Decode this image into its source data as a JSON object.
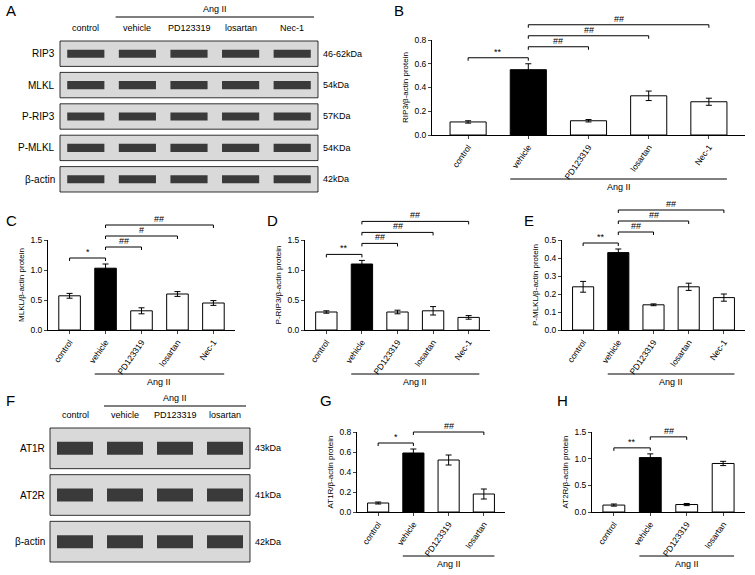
{
  "chart_data": [
    {
      "panel": "B",
      "type": "bar",
      "y_label": "RIP3/β-actin protein",
      "categories": [
        "control",
        "vehicle",
        "PD123319",
        "losartan",
        "Nec-1"
      ],
      "values": [
        0.11,
        0.55,
        0.12,
        0.33,
        0.28
      ],
      "errors": [
        0.01,
        0.05,
        0.01,
        0.04,
        0.03
      ],
      "colors": [
        "#ffffff",
        "#000000",
        "#ffffff",
        "#ffffff",
        "#ffffff"
      ],
      "ylim": [
        0,
        0.8
      ],
      "yticks": [
        {
          "value": 0,
          "label": "0.0"
        },
        0.2,
        0.4,
        0.6,
        0.8
      ],
      "significance": [
        {
          "from": "control",
          "to": "vehicle",
          "label": "**"
        },
        {
          "from": "vehicle",
          "to": "PD123319",
          "label": "##"
        },
        {
          "from": "vehicle",
          "to": "losartan",
          "label": "##"
        },
        {
          "from": "vehicle",
          "to": "Nec-1",
          "label": "##"
        }
      ],
      "group": {
        "label": "Ang II",
        "categories": [
          "vehicle",
          "PD123319",
          "losartan",
          "Nec-1"
        ]
      }
    },
    {
      "panel": "C",
      "type": "bar",
      "y_label": "MLKL/β-actin protein",
      "categories": [
        "control",
        "vehicle",
        "PD123319",
        "losartan",
        "Nec-1"
      ],
      "values": [
        0.57,
        1.03,
        0.32,
        0.6,
        0.45
      ],
      "errors": [
        0.04,
        0.07,
        0.05,
        0.04,
        0.04
      ],
      "colors": [
        "#ffffff",
        "#000000",
        "#ffffff",
        "#ffffff",
        "#ffffff"
      ],
      "ylim": [
        0,
        1.5
      ],
      "yticks": [
        {
          "value": 0,
          "label": "0.0"
        },
        0.5,
        {
          "value": 1,
          "label": "1.0"
        },
        1.5
      ],
      "significance": [
        {
          "from": "control",
          "to": "vehicle",
          "label": "*"
        },
        {
          "from": "vehicle",
          "to": "PD123319",
          "label": "##"
        },
        {
          "from": "vehicle",
          "to": "losartan",
          "label": "#"
        },
        {
          "from": "vehicle",
          "to": "Nec-1",
          "label": "##"
        }
      ],
      "group": {
        "label": "Ang II",
        "categories": [
          "vehicle",
          "PD123319",
          "losartan",
          "Nec-1"
        ]
      }
    },
    {
      "panel": "D",
      "type": "bar",
      "y_label": "P-RIP3/β-actin protein",
      "categories": [
        "control",
        "vehicle",
        "PD123319",
        "losartan",
        "Nec-1"
      ],
      "values": [
        0.3,
        1.1,
        0.3,
        0.32,
        0.21
      ],
      "errors": [
        0.02,
        0.06,
        0.03,
        0.07,
        0.03
      ],
      "colors": [
        "#ffffff",
        "#000000",
        "#ffffff",
        "#ffffff",
        "#ffffff"
      ],
      "ylim": [
        0,
        1.5
      ],
      "yticks": [
        {
          "value": 0,
          "label": "0.0"
        },
        0.5,
        {
          "value": 1,
          "label": "1.0"
        },
        1.5
      ],
      "significance": [
        {
          "from": "control",
          "to": "vehicle",
          "label": "**"
        },
        {
          "from": "vehicle",
          "to": "PD123319",
          "label": "##"
        },
        {
          "from": "vehicle",
          "to": "losartan",
          "label": "##"
        },
        {
          "from": "vehicle",
          "to": "Nec-1",
          "label": "##"
        }
      ],
      "group": {
        "label": "Ang II",
        "categories": [
          "vehicle",
          "PD123319",
          "losartan",
          "Nec-1"
        ]
      }
    },
    {
      "panel": "E",
      "type": "bar",
      "y_label": "P-MLKL/β-actin protein",
      "categories": [
        "control",
        "vehicle",
        "PD123319",
        "losartan",
        "Nec-1"
      ],
      "values": [
        0.24,
        0.43,
        0.14,
        0.24,
        0.18
      ],
      "errors": [
        0.03,
        0.02,
        0.005,
        0.02,
        0.02
      ],
      "colors": [
        "#ffffff",
        "#000000",
        "#ffffff",
        "#ffffff",
        "#ffffff"
      ],
      "ylim": [
        0,
        0.5
      ],
      "yticks": [
        {
          "value": 0,
          "label": "0.0"
        },
        0.1,
        0.2,
        0.3,
        0.4,
        0.5
      ],
      "significance": [
        {
          "from": "control",
          "to": "vehicle",
          "label": "**"
        },
        {
          "from": "vehicle",
          "to": "PD123319",
          "label": "##"
        },
        {
          "from": "vehicle",
          "to": "losartan",
          "label": "##"
        },
        {
          "from": "vehicle",
          "to": "Nec-1",
          "label": "##"
        }
      ],
      "group": {
        "label": "Ang II",
        "categories": [
          "vehicle",
          "PD123319",
          "losartan",
          "Nec-1"
        ]
      }
    },
    {
      "panel": "G",
      "type": "bar",
      "y_label": "AT1R/β-actin protein",
      "categories": [
        "control",
        "vehicle",
        "PD123319",
        "losartan"
      ],
      "values": [
        0.09,
        0.59,
        0.52,
        0.18
      ],
      "errors": [
        0.01,
        0.04,
        0.05,
        0.05
      ],
      "colors": [
        "#ffffff",
        "#000000",
        "#ffffff",
        "#ffffff"
      ],
      "ylim": [
        0,
        0.8
      ],
      "yticks": [
        {
          "value": 0,
          "label": "0.0"
        },
        0.2,
        0.4,
        0.6,
        0.8
      ],
      "significance": [
        {
          "from": "control",
          "to": "vehicle",
          "label": "*"
        },
        {
          "from": "vehicle",
          "to": "losartan",
          "label": "##"
        }
      ],
      "group": {
        "label": "Ang II",
        "categories": [
          "vehicle",
          "PD123319",
          "losartan"
        ]
      }
    },
    {
      "panel": "H",
      "type": "bar",
      "y_label": "AT2R/β-actin protein",
      "categories": [
        "control",
        "vehicle",
        "PD123319",
        "losartan"
      ],
      "values": [
        0.13,
        1.02,
        0.14,
        0.91
      ],
      "errors": [
        0.02,
        0.07,
        0.02,
        0.04
      ],
      "colors": [
        "#ffffff",
        "#000000",
        "#ffffff",
        "#ffffff"
      ],
      "ylim": [
        0,
        1.5
      ],
      "yticks": [
        {
          "value": 0,
          "label": "0.0"
        },
        0.5,
        {
          "value": 1,
          "label": "1.0"
        },
        1.5
      ],
      "significance": [
        {
          "from": "control",
          "to": "vehicle",
          "label": "**"
        },
        {
          "from": "vehicle",
          "to": "PD123319",
          "label": "##"
        }
      ],
      "group": {
        "label": "Ang II",
        "categories": [
          "vehicle",
          "PD123319",
          "losartan"
        ]
      }
    }
  ],
  "blots": [
    {
      "panel": "A",
      "lanes": [
        "control",
        "vehicle",
        "PD123319",
        "losartan",
        "Nec-1"
      ],
      "group": {
        "label": "Ang II",
        "lanes": [
          "vehicle",
          "PD123319",
          "losartan",
          "Nec-1"
        ]
      },
      "rows": [
        {
          "label": "RIP3",
          "size": "46-62kDa"
        },
        {
          "label": "MLKL",
          "size": "54kDa"
        },
        {
          "label": "P-RIP3",
          "size": "57KDa"
        },
        {
          "label": "P-MLKL",
          "size": "54KDa"
        },
        {
          "label": "β-actin",
          "size": "42kDa"
        }
      ]
    },
    {
      "panel": "F",
      "lanes": [
        "control",
        "vehicle",
        "PD123319",
        "losartan"
      ],
      "group": {
        "label": "Ang II",
        "lanes": [
          "vehicle",
          "PD123319",
          "losartan"
        ]
      },
      "rows": [
        {
          "label": "AT1R",
          "size": "43kDa"
        },
        {
          "label": "AT2R",
          "size": "41kDa"
        },
        {
          "label": "β-actin",
          "size": "42kDa"
        }
      ]
    }
  ]
}
